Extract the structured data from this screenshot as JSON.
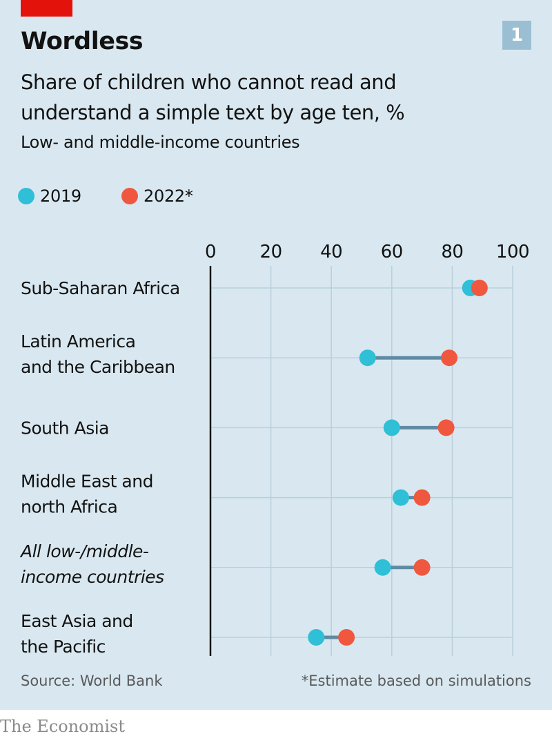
{
  "header": {
    "title": "Wordless",
    "badge": "1",
    "subtitle": "Share of children who cannot read and understand a simple text by age ten, %",
    "subsubtitle": "Low- and middle-income countries"
  },
  "legend": [
    {
      "label": "2019",
      "color": "#2fbfd6"
    },
    {
      "label": "2022*",
      "color": "#f0573f"
    }
  ],
  "chart_data": {
    "type": "dumbbell",
    "title": "Wordless",
    "subtitle": "Share of children who cannot read and understand a simple text by age ten, %",
    "xlabel": "",
    "ylabel": "",
    "xlim": [
      0,
      100
    ],
    "ticks": [
      0,
      20,
      40,
      60,
      80,
      100
    ],
    "categories": [
      {
        "lines": [
          "Sub-Saharan Africa"
        ],
        "italic": false
      },
      {
        "lines": [
          "Latin America",
          "and the Caribbean"
        ],
        "italic": false
      },
      {
        "lines": [
          "South Asia"
        ],
        "italic": false
      },
      {
        "lines": [
          "Middle East and",
          "north Africa"
        ],
        "italic": false
      },
      {
        "lines": [
          "All low-/middle-",
          "income countries"
        ],
        "italic": true
      },
      {
        "lines": [
          "East Asia and",
          "the Pacific"
        ],
        "italic": false
      }
    ],
    "series": [
      {
        "name": "2019",
        "color": "#2fbfd6",
        "values": [
          86,
          52,
          60,
          63,
          57,
          35
        ]
      },
      {
        "name": "2022*",
        "color": "#f0573f",
        "values": [
          89,
          79,
          78,
          70,
          70,
          45
        ]
      }
    ],
    "connector_color": "#5f8aa3",
    "grid": true
  },
  "footer": {
    "source": "Source: World Bank",
    "note": "*Estimate based on simulations",
    "brand": "The Economist"
  }
}
